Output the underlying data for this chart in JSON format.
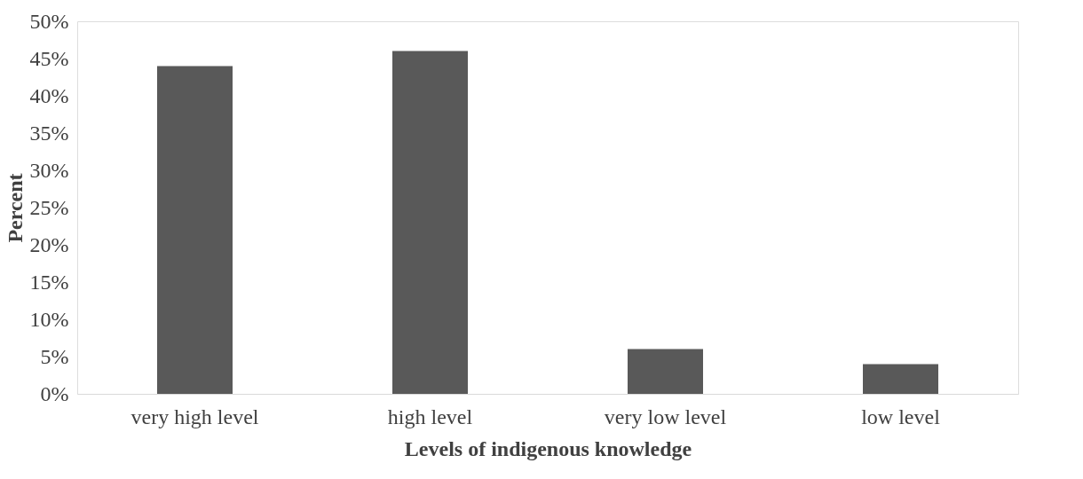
{
  "chart_data": {
    "type": "bar",
    "xlabel": "Levels of indigenous knowledge",
    "ylabel": "Percent",
    "categories": [
      "very high level",
      "high level",
      "very low level",
      "low level"
    ],
    "values": [
      44,
      46,
      6,
      4
    ],
    "color": "#595959",
    "ylim": [
      0,
      50
    ],
    "yticks": [
      {
        "value": 0,
        "label": "0%"
      },
      {
        "value": 5,
        "label": "5%"
      },
      {
        "value": 10,
        "label": "10%"
      },
      {
        "value": 15,
        "label": "15%"
      },
      {
        "value": 20,
        "label": "20%"
      },
      {
        "value": 25,
        "label": "25%"
      },
      {
        "value": 30,
        "label": "30%"
      },
      {
        "value": 35,
        "label": "35%"
      },
      {
        "value": 40,
        "label": "40%"
      },
      {
        "value": 45,
        "label": "45%"
      },
      {
        "value": 50,
        "label": "50%"
      }
    ],
    "grid": false
  }
}
